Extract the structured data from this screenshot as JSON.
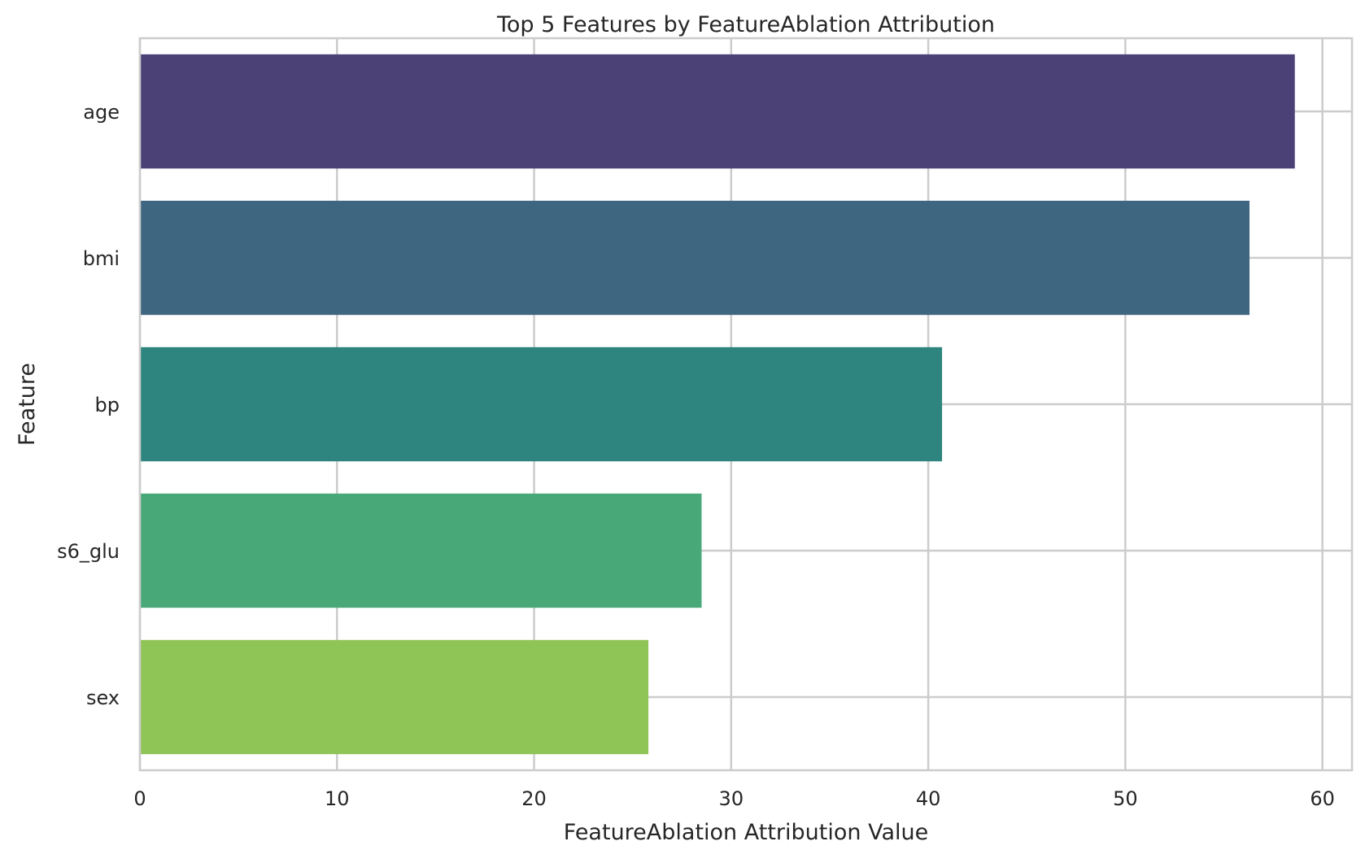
{
  "chart_data": {
    "type": "bar",
    "orientation": "horizontal",
    "title": "Top 5 Features by FeatureAblation Attribution",
    "xlabel": "FeatureAblation Attribution Value",
    "ylabel": "Feature",
    "categories": [
      "age",
      "bmi",
      "bp",
      "s6_glu",
      "sex"
    ],
    "values": [
      58.6,
      56.3,
      40.7,
      28.5,
      25.8
    ],
    "colors": [
      "#4b4176",
      "#3e6680",
      "#2e847e",
      "#48a877",
      "#8fc457"
    ],
    "xlim": [
      0,
      61.5
    ],
    "xticks": [
      0,
      10,
      20,
      30,
      40,
      50,
      60
    ],
    "grid": true,
    "legend": "none"
  }
}
